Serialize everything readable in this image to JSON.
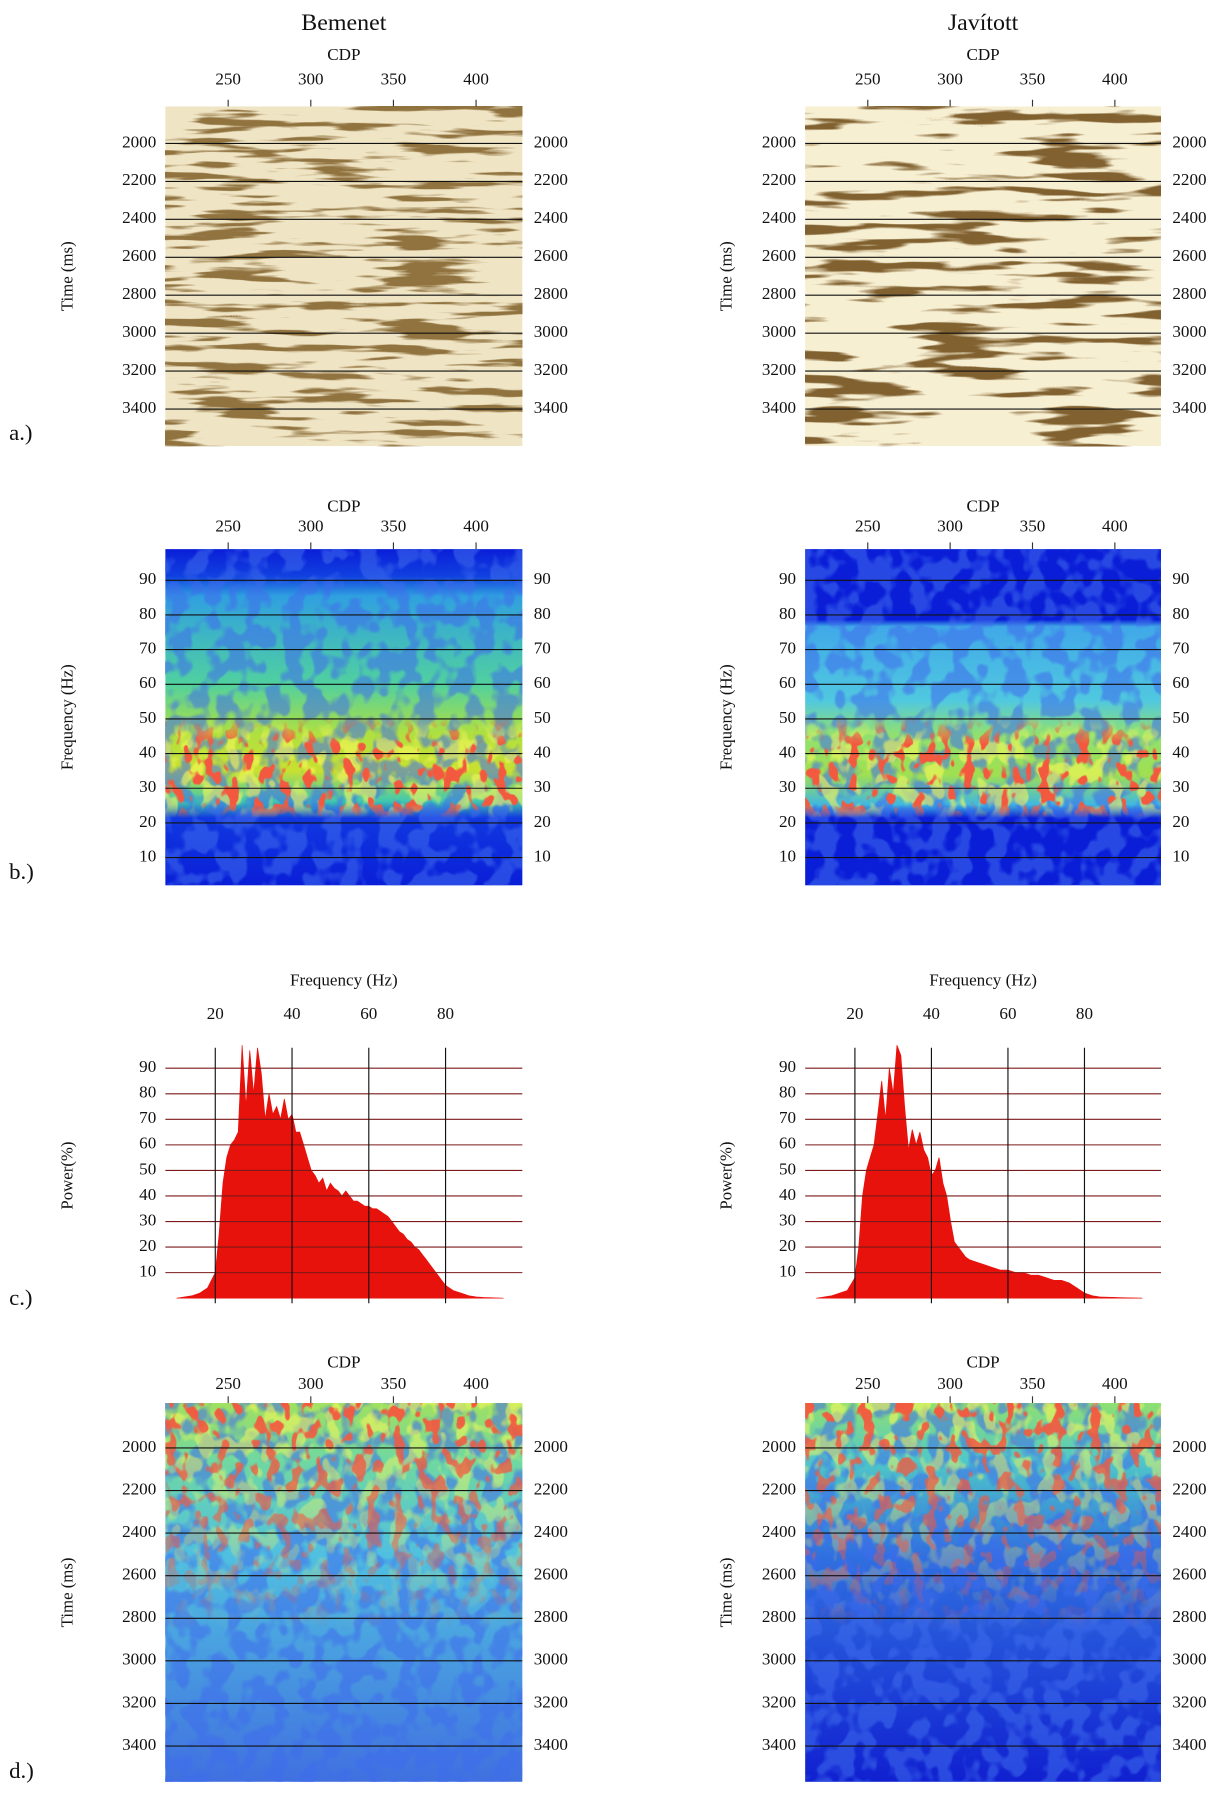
{
  "chart_data": [
    {
      "type": "seismic",
      "title": "Bemenet",
      "panel_label": "a.)",
      "xlabel": "CDP",
      "ylabel": "Time (ms)",
      "xlim": [
        212,
        428
      ],
      "xticks": [
        250,
        300,
        350,
        400
      ],
      "ylim": [
        3595,
        1805
      ],
      "yticks": [
        2000,
        2200,
        2400,
        2600,
        2800,
        3000,
        3200,
        3400
      ]
    },
    {
      "type": "seismic",
      "title": "Javított",
      "xlabel": "CDP",
      "ylabel": "Time (ms)",
      "xlim": [
        212,
        428
      ],
      "xticks": [
        250,
        300,
        350,
        400
      ],
      "ylim": [
        3595,
        1805
      ],
      "yticks": [
        2000,
        2200,
        2400,
        2600,
        2800,
        3000,
        3200,
        3400
      ]
    },
    {
      "type": "spectrogram",
      "panel_label": "b.)",
      "xlabel": "CDP",
      "ylabel": "Frequency (Hz)",
      "xlim": [
        212,
        428
      ],
      "xticks": [
        250,
        300,
        350,
        400
      ],
      "ylim": [
        2,
        99
      ],
      "yticks": [
        10,
        20,
        30,
        40,
        50,
        60,
        70,
        80,
        90
      ]
    },
    {
      "type": "spectrogram",
      "xlabel": "CDP",
      "ylabel": "Frequency (Hz)",
      "xlim": [
        212,
        428
      ],
      "xticks": [
        250,
        300,
        350,
        400
      ],
      "ylim": [
        2,
        99
      ],
      "yticks": [
        10,
        20,
        30,
        40,
        50,
        60,
        70,
        80,
        90
      ]
    },
    {
      "type": "area",
      "panel_label": "c.)",
      "xlabel": "Frequency (Hz)",
      "ylabel": "Power(%)",
      "color": "#e8120c",
      "xlim": [
        7,
        100
      ],
      "xticks": [
        20,
        40,
        60,
        80
      ],
      "ylim": [
        -2,
        98
      ],
      "yticks": [
        10,
        20,
        30,
        40,
        50,
        60,
        70,
        80,
        90
      ],
      "x": [
        10,
        12,
        14,
        16,
        18,
        20,
        21,
        22,
        23,
        24,
        25,
        26,
        27,
        28,
        29,
        30,
        31,
        32,
        33,
        34,
        35,
        36,
        37,
        38,
        39,
        40,
        41,
        42,
        43,
        44,
        45,
        46,
        47,
        48,
        49,
        50,
        51,
        52,
        53,
        54,
        55,
        56,
        57,
        58,
        59,
        60,
        61,
        62,
        63,
        64,
        65,
        66,
        67,
        68,
        69,
        70,
        71,
        72,
        73,
        74,
        75,
        76,
        77,
        78,
        79,
        80,
        82,
        84,
        86,
        88,
        90,
        95
      ],
      "values": [
        0,
        0.5,
        1,
        2,
        4,
        10,
        25,
        45,
        55,
        60,
        62,
        65,
        99,
        75,
        97,
        80,
        98,
        88,
        70,
        80,
        72,
        75,
        70,
        78,
        70,
        72,
        65,
        65,
        60,
        55,
        50,
        48,
        45,
        47,
        42,
        45,
        43,
        42,
        40,
        42,
        40,
        38,
        38,
        37,
        36,
        36,
        35,
        35,
        34,
        33,
        32,
        30,
        28,
        26,
        25,
        23,
        22,
        20,
        19,
        17,
        15,
        13,
        11,
        9,
        7,
        5,
        3,
        2,
        1,
        0.5,
        0.3,
        0
      ]
    },
    {
      "type": "area",
      "xlabel": "Frequency (Hz)",
      "ylabel": "Power(%)",
      "color": "#e8120c",
      "xlim": [
        7,
        100
      ],
      "xticks": [
        20,
        40,
        60,
        80
      ],
      "ylim": [
        -2,
        98
      ],
      "yticks": [
        10,
        20,
        30,
        40,
        50,
        60,
        70,
        80,
        90
      ],
      "x": [
        10,
        14,
        18,
        20,
        21,
        22,
        23,
        24,
        25,
        26,
        27,
        28,
        29,
        30,
        31,
        32,
        33,
        34,
        35,
        36,
        37,
        38,
        39,
        40,
        41,
        42,
        43,
        44,
        45,
        46,
        47,
        48,
        49,
        50,
        52,
        54,
        56,
        58,
        60,
        62,
        64,
        66,
        68,
        70,
        72,
        74,
        76,
        78,
        80,
        82,
        84,
        90,
        95
      ],
      "values": [
        0,
        1,
        3,
        8,
        20,
        40,
        50,
        55,
        60,
        72,
        85,
        70,
        90,
        80,
        99,
        95,
        75,
        58,
        66,
        60,
        65,
        58,
        55,
        48,
        50,
        55,
        45,
        40,
        30,
        22,
        20,
        18,
        16,
        15,
        14,
        13,
        12,
        11,
        11,
        10,
        10,
        9,
        9,
        8,
        7,
        7,
        6,
        4,
        2,
        1,
        0.5,
        0.2,
        0
      ]
    },
    {
      "type": "spectrogram",
      "panel_label": "d.)",
      "xlabel": "CDP",
      "ylabel": "Time (ms)",
      "xlim": [
        212,
        428
      ],
      "xticks": [
        250,
        300,
        350,
        400
      ],
      "ylim": [
        3568,
        1789
      ],
      "yticks": [
        2000,
        2200,
        2400,
        2600,
        2800,
        3000,
        3200,
        3400
      ]
    },
    {
      "type": "spectrogram",
      "xlabel": "CDP",
      "ylabel": "Time (ms)",
      "xlim": [
        212,
        428
      ],
      "xticks": [
        250,
        300,
        350,
        400
      ],
      "ylim": [
        3568,
        1789
      ],
      "yticks": [
        2000,
        2200,
        2400,
        2600,
        2800,
        3000,
        3200,
        3400
      ]
    }
  ]
}
